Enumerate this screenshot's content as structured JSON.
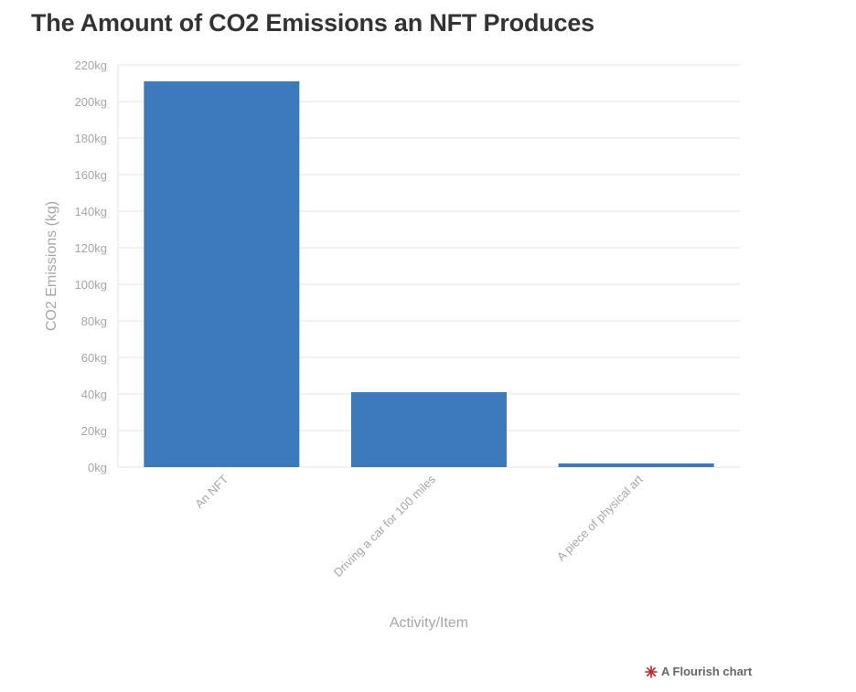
{
  "title": "The Amount of CO2 Emissions an NFT Produces",
  "credit": {
    "label": "A Flourish chart",
    "icon": "flourish-logo-icon"
  },
  "colors": {
    "bar": "#3d7abd",
    "grid": "#e6e6e6",
    "axis_text": "#a6a6a6",
    "title": "#333333",
    "logo": "#c0262c"
  },
  "chart_data": {
    "type": "bar",
    "title": "The Amount of CO2 Emissions an NFT Produces",
    "xlabel": "Activity/Item",
    "ylabel": "CO2 Emissions (kg)",
    "categories": [
      "An NFT",
      "Driving a car for 100 miles",
      "A piece of physical art"
    ],
    "values": [
      211,
      41,
      2
    ],
    "ylim": [
      0,
      220
    ],
    "yticks": [
      0,
      20,
      40,
      60,
      80,
      100,
      120,
      140,
      160,
      180,
      200,
      220
    ],
    "ytick_suffix": "kg",
    "grid": true,
    "legend": "none"
  }
}
